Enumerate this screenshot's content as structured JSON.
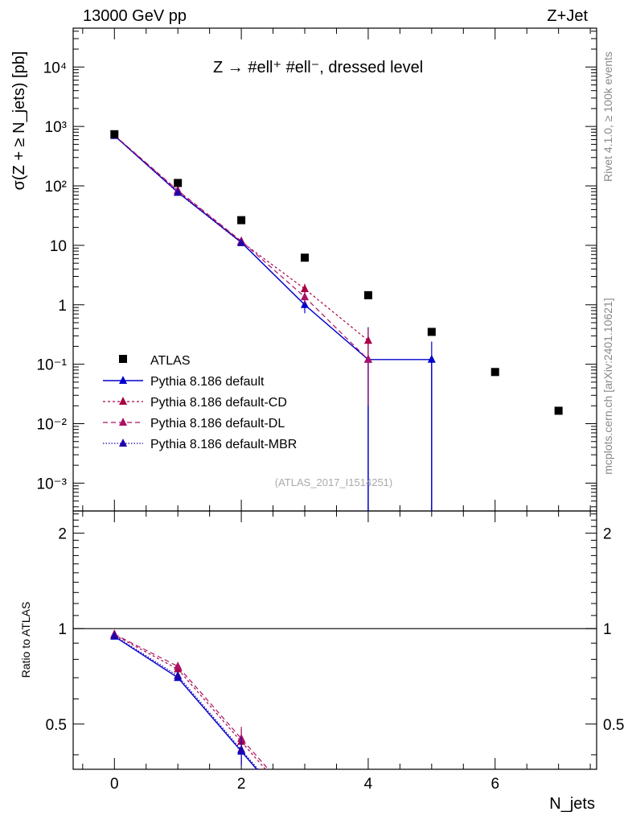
{
  "chart_data": {
    "type": "scatter",
    "top_left_label": "13000 GeV pp",
    "top_right_label": "Z+Jet",
    "title": "Z → #ell⁺ #ell⁻, dressed level",
    "ylabel_main": "σ(Z + ≥ N_jets) [pb]",
    "ylabel_ratio": "Ratio to ATLAS",
    "xlabel": "N_jets",
    "side_label_rivet": "Rivet 4.1.0, ≥ 100k events",
    "side_label_mcplots": "mcplots.cern.ch [arXiv:2401.10621]",
    "analysis_id": "(ATLAS_2017_I1514251)",
    "x_ticks": [
      "0",
      "2",
      "4",
      "6"
    ],
    "main_y_ticks": [
      "10⁻³",
      "10⁻²",
      "10⁻¹",
      "1",
      "10",
      "10²",
      "10³",
      "10⁴"
    ],
    "ratio_y_ticks": [
      "0.5",
      "1",
      "2"
    ],
    "xlim": [
      -0.65,
      7.6
    ],
    "ylim_main": [
      0.00034,
      45000
    ],
    "ylim_ratio": [
      0.36,
      2.35
    ],
    "series": [
      {
        "name": "ATLAS",
        "style": "data",
        "color": "#000000",
        "x": [
          0,
          1,
          2,
          3,
          4,
          5,
          6,
          7
        ],
        "y": [
          740,
          112,
          26.5,
          6.2,
          1.45,
          0.35,
          0.074,
          0.0165
        ]
      },
      {
        "name": "Pythia 8.186 default",
        "style": "solid",
        "color": "#0000cc",
        "x": [
          0,
          1,
          2,
          3,
          4,
          5
        ],
        "y": [
          700,
          78,
          11.2,
          1.0,
          0.12,
          0.12
        ],
        "yerr": [
          20,
          4,
          0.6,
          0.28,
          0.3,
          0.12
        ],
        "ratio": [
          0.945,
          0.7,
          0.41
        ]
      },
      {
        "name": "Pythia 8.186 default-CD",
        "style": "dashed-short",
        "color": "#aa0044",
        "x": [
          0,
          1,
          2,
          3,
          4
        ],
        "y": [
          705,
          82,
          11.5,
          1.85,
          0.25
        ],
        "yerr": [
          20,
          4,
          0.6,
          0.4,
          0.15
        ],
        "ratio": [
          0.955,
          0.745,
          0.44
        ]
      },
      {
        "name": "Pythia 8.186 default-DL",
        "style": "dashed",
        "color": "#aa1166",
        "x": [
          0,
          1,
          2,
          3,
          4
        ],
        "y": [
          710,
          84,
          11.8,
          1.35,
          0.12
        ],
        "yerr": [
          20,
          4,
          0.6,
          0.3,
          0.1
        ],
        "ratio": [
          0.96,
          0.76,
          0.45
        ]
      },
      {
        "name": "Pythia 8.186 default-MBR",
        "style": "dotted",
        "color": "#2200aa",
        "x": [
          0,
          1,
          2
        ],
        "y": [
          700,
          77,
          11.0
        ],
        "yerr": [
          20,
          4,
          0.6
        ],
        "ratio": [
          0.95,
          0.71,
          0.415
        ]
      }
    ]
  }
}
